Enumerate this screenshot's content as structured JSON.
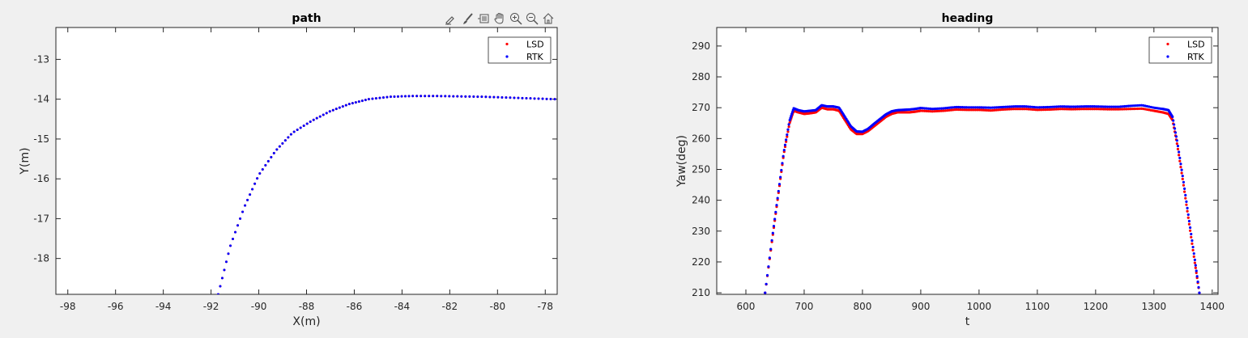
{
  "toolbar": {
    "icons": [
      "brush-edit-icon",
      "brush-icon",
      "datatip-icon",
      "pan-hand-icon",
      "zoom-in-icon",
      "zoom-out-icon",
      "home-icon"
    ]
  },
  "colors": {
    "lsd": "#ff0000",
    "rtk": "#0000ff",
    "background": "#f0f0f0",
    "axes": "#ffffff"
  },
  "chart_data": [
    {
      "type": "scatter",
      "title": "path",
      "xlabel": "X(m)",
      "ylabel": "Y(m)",
      "xlim": [
        -98.5,
        -77.5
      ],
      "ylim": [
        -18.9,
        -12.2
      ],
      "xticks": [
        -98,
        -96,
        -94,
        -92,
        -90,
        -88,
        -86,
        -84,
        -82,
        -80,
        -78
      ],
      "yticks": [
        -13,
        -14,
        -15,
        -16,
        -17,
        -18
      ],
      "grid": false,
      "legend": "top-right",
      "series": [
        {
          "name": "LSD",
          "color": "#ff0000",
          "x": [
            -91.7,
            -91.2,
            -90.6,
            -90.0,
            -89.3,
            -88.6,
            -87.8,
            -87.0,
            -86.2,
            -85.4,
            -84.5,
            -83.6,
            -82.6,
            -81.6,
            -80.6,
            -79.6,
            -78.6,
            -77.6
          ],
          "y": [
            -18.9,
            -17.7,
            -16.7,
            -15.9,
            -15.3,
            -14.85,
            -14.55,
            -14.3,
            -14.12,
            -14.0,
            -13.94,
            -13.92,
            -13.92,
            -13.93,
            -13.94,
            -13.96,
            -13.98,
            -14.0
          ]
        },
        {
          "name": "RTK",
          "color": "#0000ff",
          "x": [
            -91.7,
            -91.2,
            -90.6,
            -90.0,
            -89.3,
            -88.6,
            -87.8,
            -87.0,
            -86.2,
            -85.4,
            -84.5,
            -83.6,
            -82.6,
            -81.6,
            -80.6,
            -79.6,
            -78.6,
            -77.6
          ],
          "y": [
            -18.9,
            -17.7,
            -16.7,
            -15.9,
            -15.3,
            -14.85,
            -14.55,
            -14.3,
            -14.12,
            -14.0,
            -13.94,
            -13.92,
            -13.92,
            -13.93,
            -13.94,
            -13.96,
            -13.98,
            -14.0
          ]
        }
      ]
    },
    {
      "type": "scatter",
      "title": "heading",
      "xlabel": "t",
      "ylabel": "Yaw(deg)",
      "xlim": [
        550,
        1410
      ],
      "ylim": [
        209.5,
        296
      ],
      "xticks": [
        600,
        700,
        800,
        900,
        1000,
        1100,
        1200,
        1300,
        1400
      ],
      "yticks": [
        210,
        220,
        230,
        240,
        250,
        260,
        270,
        280,
        290
      ],
      "grid": false,
      "legend": "top-right",
      "series": [
        {
          "name": "LSD",
          "color": "#ff0000",
          "x": [
            633,
            645,
            655,
            665,
            675,
            682,
            690,
            700,
            710,
            720,
            730,
            740,
            750,
            760,
            770,
            780,
            790,
            800,
            810,
            820,
            830,
            840,
            850,
            860,
            870,
            880,
            890,
            900,
            920,
            940,
            960,
            980,
            1000,
            1020,
            1040,
            1060,
            1080,
            1100,
            1120,
            1140,
            1160,
            1180,
            1200,
            1220,
            1240,
            1260,
            1280,
            1300,
            1315,
            1325,
            1332,
            1340,
            1350,
            1360,
            1370,
            1378
          ],
          "y": [
            210,
            227,
            241,
            255,
            265,
            269,
            268.5,
            268,
            268.2,
            268.5,
            270,
            269.5,
            269.5,
            269,
            266,
            263,
            261.5,
            261.5,
            262.5,
            264,
            265.5,
            267,
            268,
            268.5,
            268.5,
            268.5,
            268.7,
            269,
            268.8,
            269,
            269.4,
            269.3,
            269.3,
            269.1,
            269.4,
            269.6,
            269.6,
            269.3,
            269.4,
            269.6,
            269.5,
            269.6,
            269.6,
            269.5,
            269.5,
            269.6,
            269.7,
            269.0,
            268.5,
            268.0,
            266,
            258,
            246,
            233,
            220,
            210
          ]
        },
        {
          "name": "RTK",
          "color": "#0000ff",
          "x": [
            633,
            645,
            655,
            665,
            675,
            682,
            690,
            700,
            710,
            720,
            730,
            740,
            750,
            760,
            770,
            780,
            790,
            800,
            810,
            820,
            830,
            840,
            850,
            860,
            870,
            880,
            890,
            900,
            920,
            940,
            960,
            980,
            1000,
            1020,
            1040,
            1060,
            1080,
            1100,
            1120,
            1140,
            1160,
            1180,
            1200,
            1220,
            1240,
            1260,
            1280,
            1300,
            1315,
            1325,
            1332,
            1340,
            1350,
            1360,
            1370,
            1378
          ],
          "y": [
            210,
            227.5,
            241.5,
            255.5,
            265.8,
            269.8,
            269.2,
            268.8,
            269,
            269.2,
            270.8,
            270.4,
            270.4,
            270,
            267,
            264,
            262.3,
            262.2,
            263.2,
            264.8,
            266.3,
            267.8,
            268.8,
            269.2,
            269.3,
            269.4,
            269.6,
            269.9,
            269.6,
            269.8,
            270.2,
            270.1,
            270.1,
            270.0,
            270.2,
            270.4,
            270.4,
            270.1,
            270.2,
            270.4,
            270.3,
            270.4,
            270.4,
            270.3,
            270.3,
            270.6,
            270.8,
            270.0,
            269.6,
            269.2,
            267,
            259,
            247,
            234,
            221,
            210
          ]
        }
      ]
    }
  ]
}
